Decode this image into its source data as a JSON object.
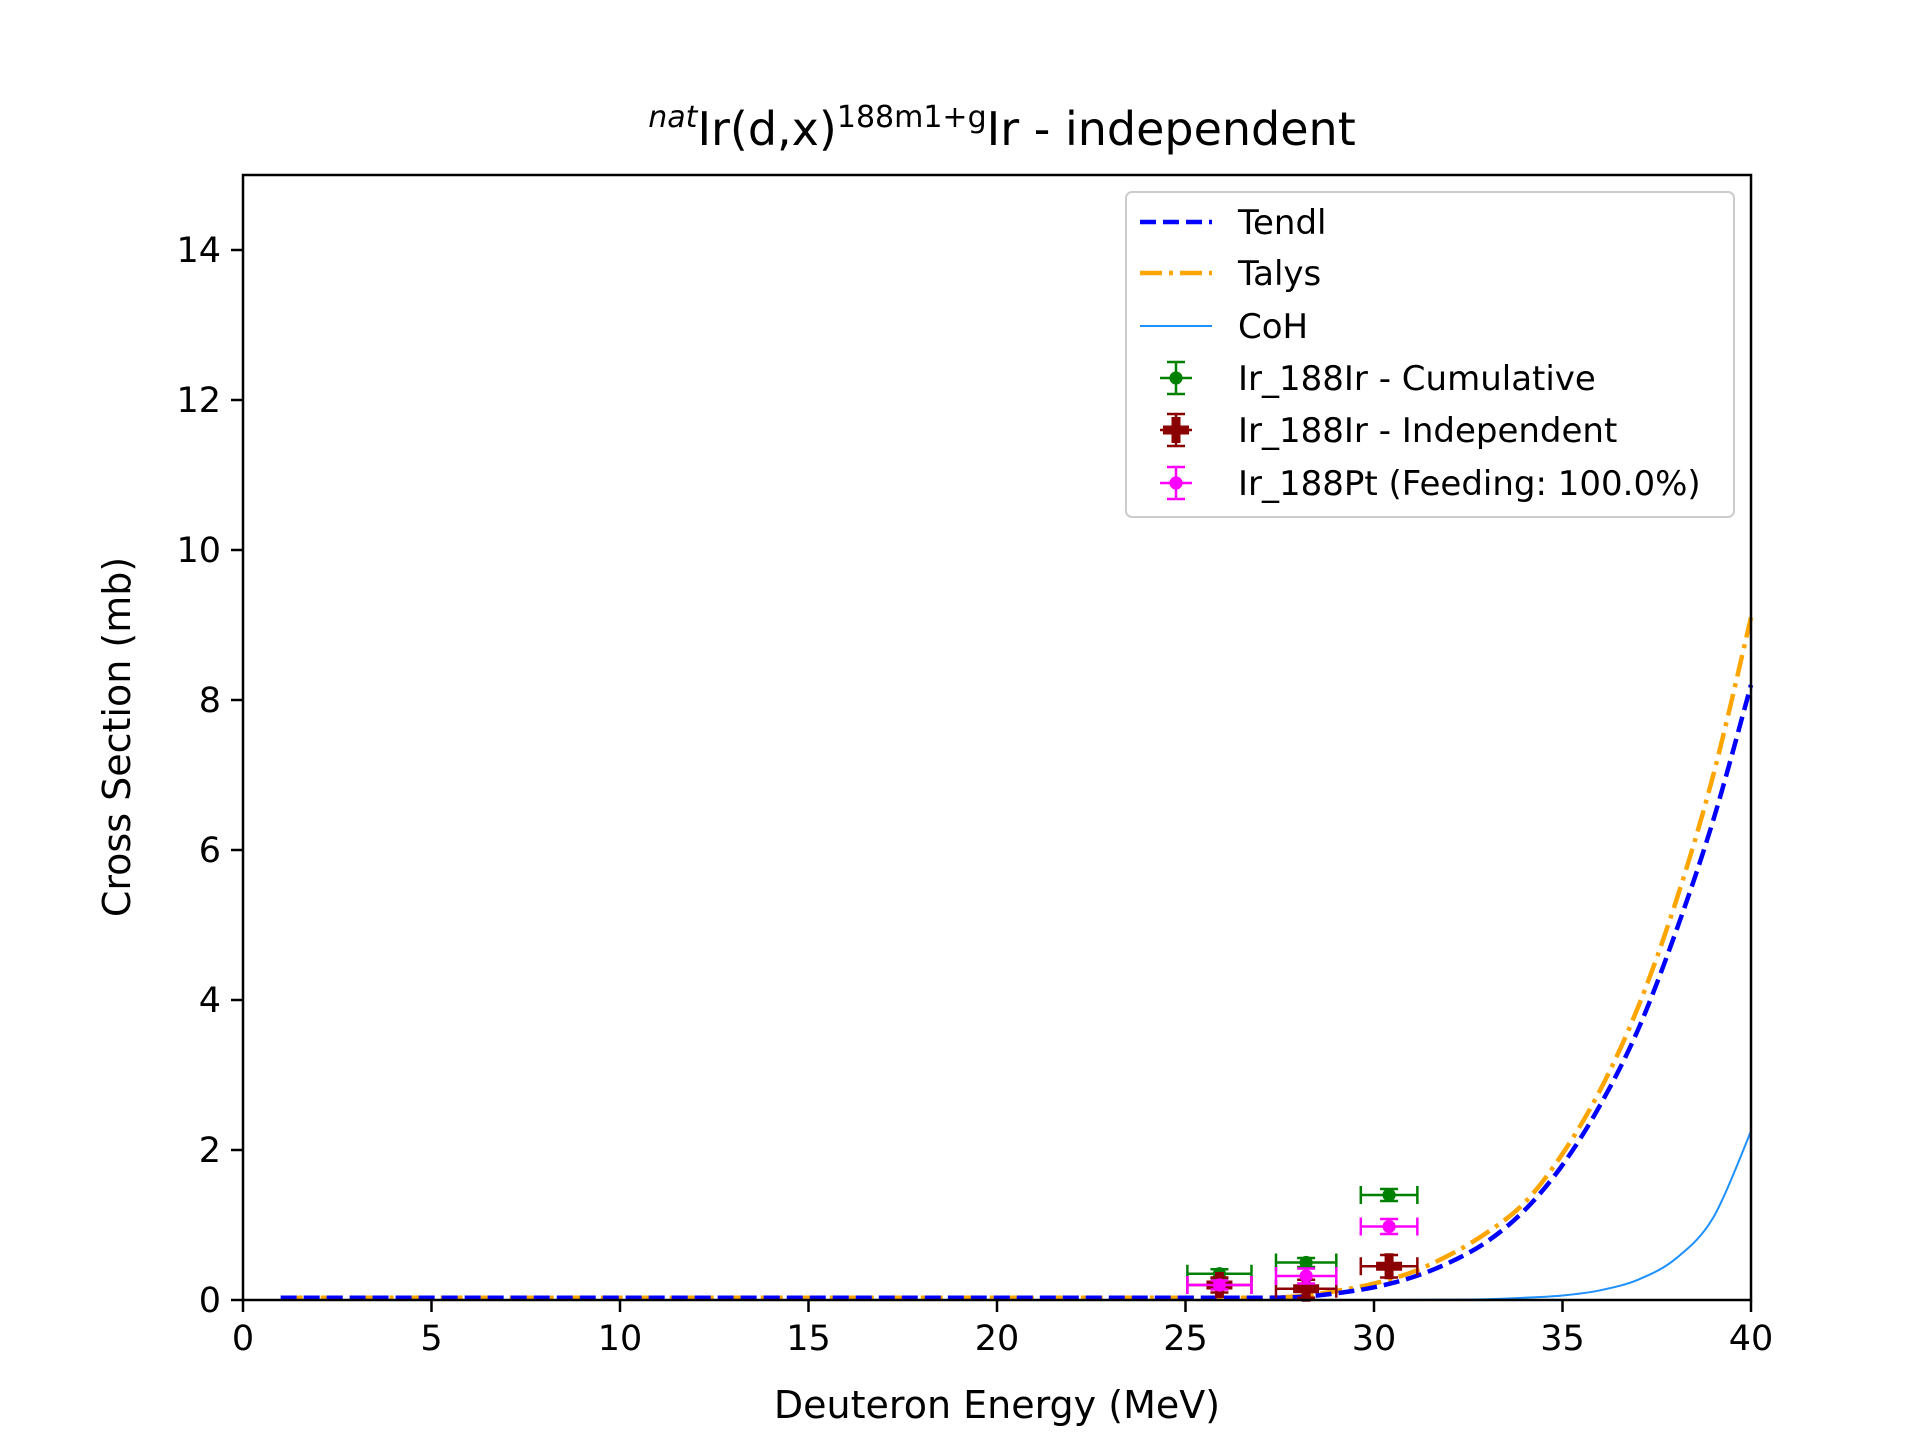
{
  "chart_data": {
    "type": "line",
    "title": {
      "pre_sup": "nat",
      "main1": "Ir(d,x)",
      "sup": "188m1+g",
      "main2": "Ir - independent"
    },
    "xlabel": "Deuteron Energy (MeV)",
    "ylabel": "Cross Section (mb)",
    "xlim": [
      0,
      40
    ],
    "ylim": [
      0,
      15
    ],
    "xticks": [
      0,
      5,
      10,
      15,
      20,
      25,
      30,
      35,
      40
    ],
    "yticks": [
      0,
      2,
      4,
      6,
      8,
      10,
      12,
      14
    ],
    "grid": false,
    "legend_position": "top-right",
    "colors": {
      "tendl": "#0000ff",
      "talys": "#ffa500",
      "coh": "#1e90ff",
      "cumulative": "#008000",
      "independent": "#8b0000",
      "feeding": "#ff00ff"
    },
    "lines": [
      {
        "name": "Tendl",
        "style": "dashed",
        "x": [
          1,
          10,
          20,
          25,
          26,
          27,
          28,
          29,
          30,
          31,
          32,
          33,
          34,
          35,
          36,
          37,
          38,
          39,
          40
        ],
        "y": [
          0.03,
          0.03,
          0.03,
          0.03,
          0.03,
          0.03,
          0.04,
          0.09,
          0.17,
          0.3,
          0.5,
          0.78,
          1.2,
          1.8,
          2.6,
          3.6,
          4.9,
          6.4,
          8.2
        ]
      },
      {
        "name": "Talys",
        "style": "dashdot",
        "x": [
          1,
          10,
          20,
          25,
          26,
          27,
          28,
          29,
          30,
          31,
          32,
          33,
          34,
          35,
          36,
          37,
          38,
          39,
          40
        ],
        "y": [
          0.03,
          0.03,
          0.03,
          0.03,
          0.03,
          0.03,
          0.05,
          0.12,
          0.22,
          0.37,
          0.6,
          0.9,
          1.3,
          1.95,
          2.8,
          3.9,
          5.3,
          7.0,
          9.1
        ]
      },
      {
        "name": "CoH",
        "style": "solid",
        "x": [
          1,
          10,
          20,
          28,
          30,
          32,
          33,
          34,
          35,
          36,
          37,
          38,
          39,
          40
        ],
        "y": [
          0.0,
          0.0,
          0.0,
          0.0,
          0.0,
          0.005,
          0.01,
          0.03,
          0.06,
          0.13,
          0.27,
          0.55,
          1.1,
          2.25
        ]
      }
    ],
    "points": [
      {
        "name": "Ir_188Ir - Cumulative",
        "marker": "circle",
        "x": [
          25.9,
          28.2,
          30.4
        ],
        "y": [
          0.35,
          0.5,
          1.4
        ],
        "xerr": [
          0.85,
          0.8,
          0.75
        ],
        "yerr": [
          0.06,
          0.06,
          0.08
        ]
      },
      {
        "name": "Ir_188Ir - Independent",
        "marker": "plus",
        "x": [
          25.9,
          28.2,
          30.4
        ],
        "y": [
          0.2,
          0.15,
          0.45
        ],
        "xerr": [
          0.85,
          0.8,
          0.75
        ],
        "yerr": [
          0.1,
          0.12,
          0.15
        ]
      },
      {
        "name": "Ir_188Pt (Feeding: 100.0%)",
        "marker": "circle",
        "x": [
          25.9,
          28.2,
          30.4
        ],
        "y": [
          0.2,
          0.32,
          0.98
        ],
        "xerr": [
          0.85,
          0.8,
          0.75
        ],
        "yerr": [
          0.06,
          0.1,
          0.1
        ]
      }
    ]
  }
}
